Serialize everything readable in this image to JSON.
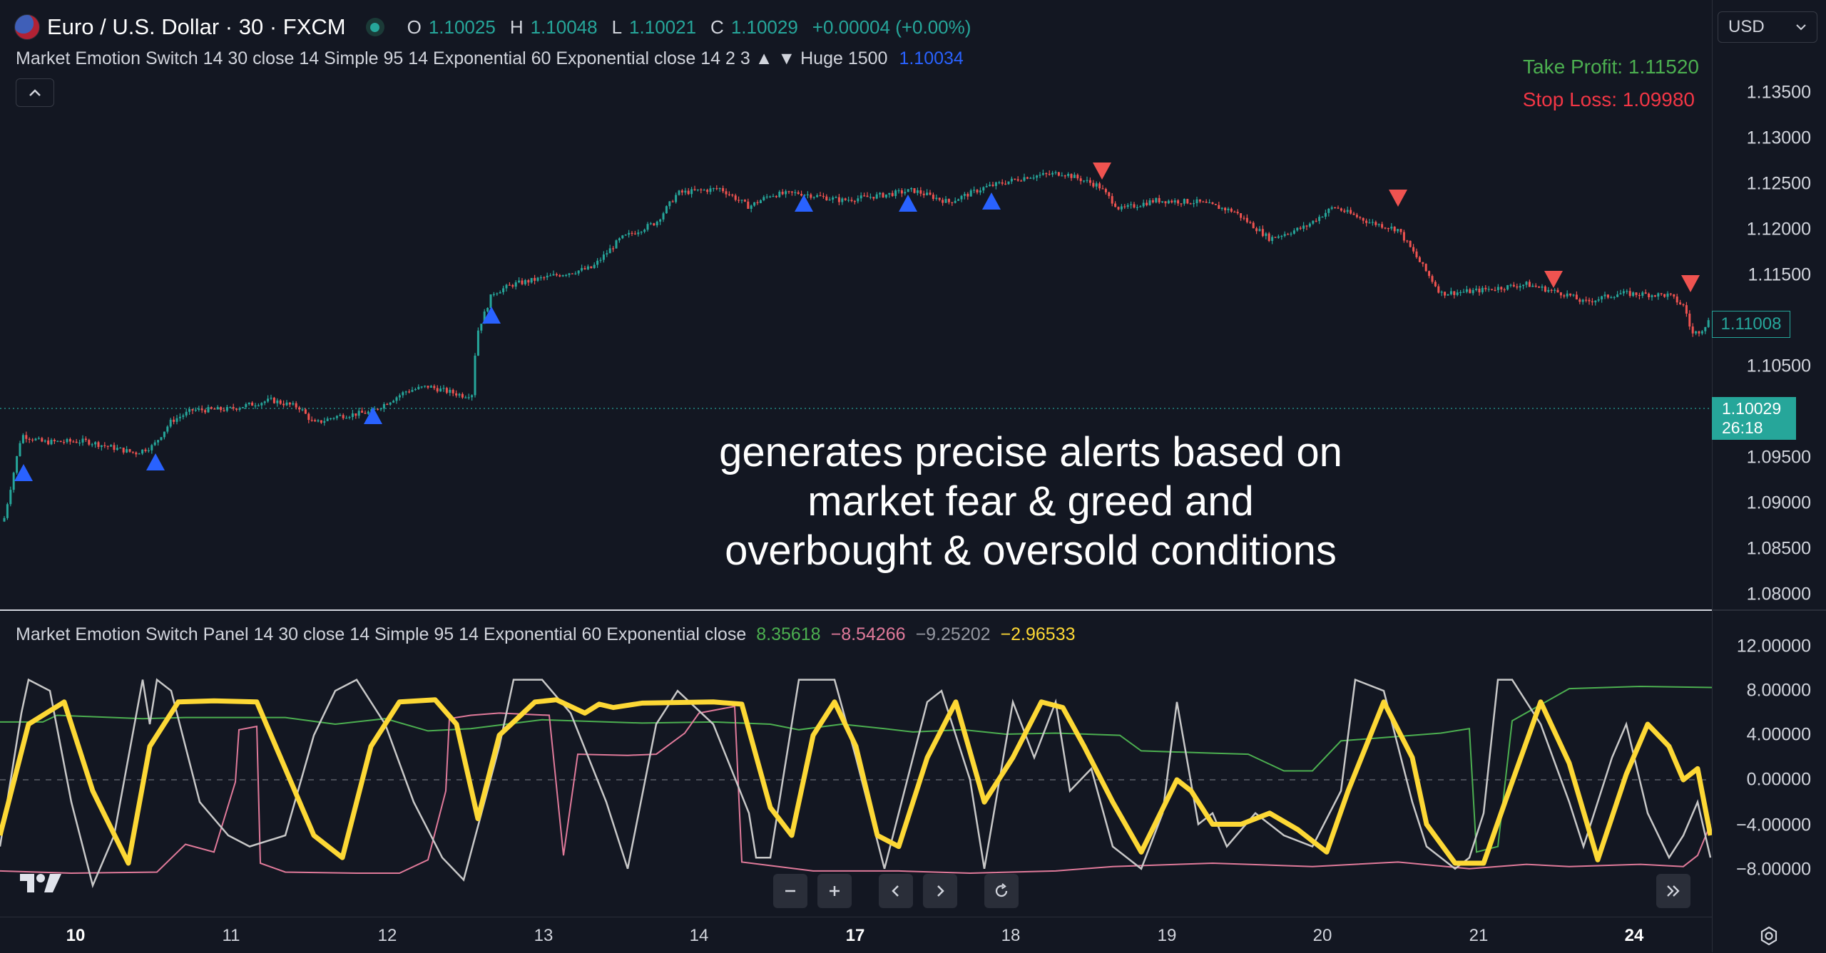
{
  "header": {
    "symbol_title": "Euro / U.S. Dollar · 30 · FXCM",
    "ohlc": {
      "o_key": "O",
      "o_val": "1.10025",
      "h_key": "H",
      "h_val": "1.10048",
      "l_key": "L",
      "l_val": "1.10021",
      "c_key": "C",
      "c_val": "1.10029",
      "change": "+0.00004 (+0.00%)"
    },
    "currency": "USD"
  },
  "indicator": {
    "legend": "Market Emotion Switch 14 30 close 14 Simple 95 14 Exponential 60 Exponential close 14 2 3 ▲ ▼ Huge 1500",
    "value": "1.10034",
    "take_profit": "Take Profit: 1.11520",
    "stop_loss": "Stop Loss: 1.09980"
  },
  "panel": {
    "legend": "Market Emotion Switch Panel 14 30 close 14 Simple 95 14 Exponential 60 Exponential close",
    "values": [
      "8.35618",
      "−8.54266",
      "−9.25202",
      "−2.96533"
    ],
    "axis_labels": [
      "12.00000",
      "8.00000",
      "4.00000",
      "0.00000",
      "−4.00000",
      "−8.00000"
    ]
  },
  "price_axis": {
    "labels": [
      "1.13500",
      "1.13000",
      "1.12500",
      "1.12000",
      "1.11500",
      "1.10500",
      "1.09500",
      "1.09000",
      "1.08500",
      "1.08000"
    ],
    "last_price": "1.11008",
    "current_price": "1.10029",
    "countdown": "26:18"
  },
  "overlay": {
    "line1": "generates precise alerts based on",
    "line2": "market fear & greed and",
    "line3": "overbought & oversold conditions"
  },
  "time_axis": [
    "10",
    "11",
    "12",
    "13",
    "14",
    "17",
    "18",
    "19",
    "20",
    "21",
    "24"
  ],
  "icons": {
    "collapse": "chevron-up-icon",
    "zoom_out": "minus-icon",
    "zoom_in": "plus-icon",
    "scroll_left": "chevron-left-icon",
    "scroll_right": "chevron-right-icon",
    "reset": "reset-icon",
    "jump_latest": "double-chevron-right-icon",
    "settings": "gear-icon"
  },
  "colors": {
    "background": "#131722",
    "up": "#26a69a",
    "down": "#ef5350",
    "buy_signal": "#2962ff",
    "sell_signal": "#ef5350",
    "take_profit": "#4caf50",
    "stop_loss": "#f23645",
    "panel_green": "#4caf50",
    "panel_pink": "#e07a9a",
    "panel_white": "#c8c8c8",
    "panel_yellow": "#fdd835"
  }
}
